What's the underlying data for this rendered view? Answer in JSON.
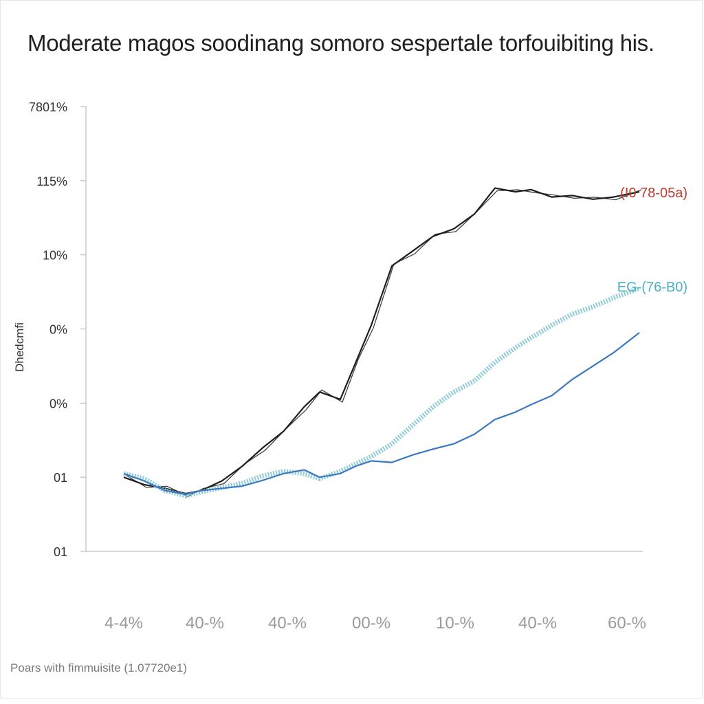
{
  "title": "Moderate magos soodinang somoro sespertale torfouibiting his.",
  "footnote": "Poars with fimmuisite (1.07720e1)",
  "chart_data": {
    "type": "line",
    "title": "Moderate magos soodinang somoro sespertale torfouibiting his.",
    "ylabel": "Dhedcmfi",
    "xlabel": "",
    "y_tick_labels": [
      "01",
      "01",
      "0%",
      "0%",
      "10%",
      "115%",
      "7801%"
    ],
    "x_tick_labels": [
      "4-4%",
      "40-%",
      "40-%",
      "00-%",
      "10-%",
      "40-%",
      "60-%"
    ],
    "grid": false,
    "legend": "inline-right",
    "x_range": [
      0,
      1
    ],
    "y_range": [
      0,
      6
    ],
    "series": [
      {
        "name": "(I0 78-05a)",
        "color": "#1e1e1e",
        "label_color": "#c0392b",
        "style": "double",
        "x": [
          0.0,
          0.04,
          0.08,
          0.12,
          0.15,
          0.19,
          0.23,
          0.27,
          0.31,
          0.35,
          0.38,
          0.42,
          0.45,
          0.48,
          0.52,
          0.56,
          0.6,
          0.64,
          0.68,
          0.72,
          0.76,
          0.79,
          0.83,
          0.87,
          0.91,
          0.95,
          1.0
        ],
        "y": [
          1.0,
          0.9,
          0.85,
          0.78,
          0.82,
          0.95,
          1.15,
          1.4,
          1.62,
          1.95,
          2.15,
          2.05,
          2.55,
          3.05,
          3.85,
          4.05,
          4.25,
          4.35,
          4.55,
          4.9,
          4.85,
          4.88,
          4.78,
          4.8,
          4.75,
          4.78,
          4.85
        ]
      },
      {
        "name": "EG-(76-B0)",
        "color": "#7fc6d3",
        "label_color": "#4ab0c4",
        "style": "dotted",
        "x": [
          0.0,
          0.04,
          0.08,
          0.12,
          0.15,
          0.19,
          0.23,
          0.27,
          0.31,
          0.35,
          0.38,
          0.42,
          0.45,
          0.48,
          0.52,
          0.56,
          0.6,
          0.64,
          0.68,
          0.72,
          0.76,
          0.79,
          0.83,
          0.87,
          0.91,
          0.95,
          1.0
        ],
        "y": [
          1.05,
          0.98,
          0.82,
          0.75,
          0.8,
          0.86,
          0.92,
          1.02,
          1.08,
          1.05,
          0.98,
          1.08,
          1.18,
          1.28,
          1.45,
          1.7,
          1.95,
          2.15,
          2.3,
          2.55,
          2.75,
          2.88,
          3.05,
          3.2,
          3.3,
          3.42,
          3.55
        ]
      },
      {
        "name": "",
        "color": "#3a78c2",
        "label_color": "#3a78c2",
        "style": "solid",
        "x": [
          0.0,
          0.04,
          0.08,
          0.12,
          0.15,
          0.19,
          0.23,
          0.27,
          0.31,
          0.35,
          0.38,
          0.42,
          0.45,
          0.48,
          0.52,
          0.56,
          0.6,
          0.64,
          0.68,
          0.72,
          0.76,
          0.79,
          0.83,
          0.87,
          0.91,
          0.95,
          1.0
        ],
        "y": [
          1.05,
          0.95,
          0.82,
          0.77,
          0.82,
          0.85,
          0.88,
          0.96,
          1.05,
          1.1,
          1.0,
          1.05,
          1.15,
          1.22,
          1.2,
          1.3,
          1.38,
          1.45,
          1.58,
          1.78,
          1.88,
          1.98,
          2.1,
          2.32,
          2.5,
          2.68,
          2.95
        ]
      }
    ]
  }
}
